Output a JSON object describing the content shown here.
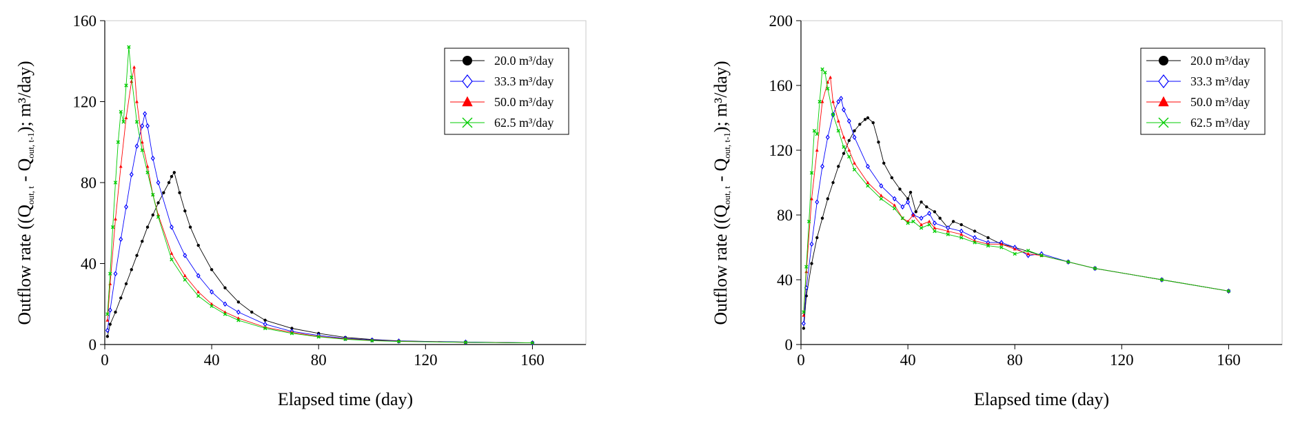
{
  "chart_data": [
    {
      "type": "line",
      "xlabel": "Elapsed time (day)",
      "ylabel": "Outflow rate ((Q",
      "ylabel_sub1": "out, t",
      "ylabel_mid": " - Q",
      "ylabel_sub2": "out, t-1",
      "ylabel_end": "); m³/day)",
      "xlim": [
        0,
        180
      ],
      "ylim": [
        0,
        160
      ],
      "xticks": [
        0,
        40,
        80,
        120,
        160
      ],
      "yticks": [
        0,
        40,
        80,
        120,
        160
      ],
      "grid": false,
      "legend_position": "top-right",
      "series": [
        {
          "name": "20.0 m³/day",
          "color": "#000000",
          "marker": "circle",
          "x": [
            1,
            2,
            4,
            6,
            8,
            10,
            12,
            14,
            16,
            18,
            20,
            22,
            24,
            25,
            26,
            28,
            30,
            32,
            35,
            40,
            45,
            50,
            55,
            60,
            70,
            80,
            90,
            100,
            110,
            135,
            160
          ],
          "y": [
            4,
            10,
            16,
            23,
            30,
            37,
            44,
            51,
            58,
            64,
            70,
            75,
            80,
            83,
            85,
            75,
            66,
            58,
            49,
            37,
            28,
            21,
            16,
            12,
            8,
            5.5,
            3.5,
            2.5,
            1.8,
            1.2,
            0.8
          ]
        },
        {
          "name": "33.3 m³/day",
          "color": "#0000ff",
          "marker": "diamond",
          "x": [
            1,
            2,
            4,
            6,
            8,
            10,
            12,
            14,
            15,
            16,
            18,
            20,
            25,
            30,
            35,
            40,
            45,
            50,
            60,
            70,
            80,
            90,
            100,
            110,
            135,
            160
          ],
          "y": [
            7,
            17,
            35,
            52,
            68,
            84,
            98,
            108,
            114,
            108,
            92,
            80,
            58,
            44,
            34,
            26,
            20,
            16,
            10,
            6.5,
            4.5,
            3,
            2.2,
            1.7,
            1.2,
            0.8
          ]
        },
        {
          "name": "50.0 m³/day",
          "color": "#ff0000",
          "marker": "triangle",
          "x": [
            1,
            2,
            4,
            6,
            8,
            10,
            11,
            12,
            14,
            16,
            18,
            20,
            25,
            30,
            35,
            40,
            45,
            50,
            60,
            70,
            80,
            90,
            100,
            110,
            135,
            160
          ],
          "y": [
            12,
            30,
            62,
            88,
            112,
            130,
            137,
            120,
            100,
            88,
            74,
            64,
            45,
            34,
            26,
            20,
            16,
            13,
            8.5,
            6,
            4,
            2.8,
            2,
            1.6,
            1.1,
            0.8
          ]
        },
        {
          "name": "62.5 m³/day",
          "color": "#00cc00",
          "marker": "cross",
          "x": [
            1,
            2,
            3,
            4,
            5,
            6,
            7,
            8,
            9,
            10,
            12,
            14,
            16,
            18,
            20,
            25,
            30,
            35,
            40,
            45,
            50,
            60,
            70,
            80,
            90,
            100,
            110,
            135,
            160
          ],
          "y": [
            15,
            35,
            58,
            80,
            100,
            115,
            110,
            128,
            147,
            132,
            110,
            96,
            85,
            74,
            63,
            42,
            32,
            24,
            19,
            15,
            12,
            8,
            5.5,
            3.8,
            2.6,
            1.9,
            1.5,
            1.1,
            0.8
          ]
        }
      ]
    },
    {
      "type": "line",
      "xlabel": "Elapsed time (day)",
      "ylabel": "Outflow rate ((Q",
      "ylabel_sub1": "out, t",
      "ylabel_mid": " - Q",
      "ylabel_sub2": "out, t-1",
      "ylabel_end": "); m³/day)",
      "xlim": [
        0,
        180
      ],
      "ylim": [
        0,
        200
      ],
      "xticks": [
        0,
        40,
        80,
        120,
        160
      ],
      "yticks": [
        0,
        40,
        80,
        120,
        160,
        200
      ],
      "grid": false,
      "legend_position": "top-right",
      "series": [
        {
          "name": "20.0 m³/day",
          "color": "#000000",
          "marker": "circle",
          "x": [
            1,
            2,
            4,
            6,
            8,
            10,
            12,
            14,
            16,
            18,
            20,
            22,
            24,
            25,
            27,
            29,
            31,
            34,
            37,
            40,
            41,
            43,
            45,
            47,
            50,
            52,
            55,
            57,
            60,
            65,
            70,
            75,
            80,
            90,
            100,
            110,
            135,
            160
          ],
          "y": [
            10,
            30,
            50,
            66,
            78,
            90,
            100,
            110,
            118,
            126,
            132,
            136,
            139,
            140,
            137,
            125,
            112,
            103,
            96,
            90,
            94,
            82,
            88,
            85,
            82,
            78,
            72,
            76,
            74,
            70,
            66,
            62,
            60,
            55,
            51,
            47,
            40,
            33
          ]
        },
        {
          "name": "33.3 m³/day",
          "color": "#0000ff",
          "marker": "diamond",
          "x": [
            1,
            2,
            4,
            6,
            8,
            10,
            12,
            14,
            15,
            16,
            18,
            20,
            25,
            30,
            35,
            38,
            40,
            42,
            45,
            48,
            50,
            55,
            60,
            65,
            70,
            75,
            80,
            85,
            90,
            100,
            110,
            135,
            160
          ],
          "y": [
            13,
            35,
            62,
            88,
            110,
            128,
            142,
            150,
            152,
            145,
            138,
            128,
            110,
            98,
            90,
            85,
            88,
            80,
            78,
            81,
            75,
            72,
            70,
            66,
            63,
            63,
            60,
            55,
            56,
            51,
            47,
            40,
            33
          ]
        },
        {
          "name": "50.0 m³/day",
          "color": "#ff0000",
          "marker": "triangle",
          "x": [
            1,
            2,
            4,
            6,
            8,
            10,
            11,
            12,
            14,
            16,
            18,
            20,
            25,
            30,
            35,
            38,
            40,
            42,
            45,
            48,
            50,
            55,
            60,
            65,
            70,
            75,
            80,
            85,
            90,
            100,
            110,
            135,
            160
          ],
          "y": [
            18,
            45,
            90,
            120,
            150,
            162,
            165,
            150,
            138,
            128,
            120,
            112,
            100,
            92,
            86,
            78,
            76,
            80,
            74,
            76,
            72,
            70,
            68,
            64,
            62,
            62,
            59,
            56,
            55,
            51,
            47,
            40,
            33
          ]
        },
        {
          "name": "62.5 m³/day",
          "color": "#00cc00",
          "marker": "cross",
          "x": [
            1,
            2,
            3,
            4,
            5,
            6,
            7,
            8,
            9,
            10,
            12,
            14,
            16,
            18,
            20,
            25,
            30,
            35,
            38,
            40,
            42,
            45,
            48,
            50,
            55,
            60,
            65,
            70,
            75,
            80,
            85,
            90,
            100,
            110,
            135,
            160
          ],
          "y": [
            20,
            48,
            76,
            106,
            132,
            130,
            150,
            170,
            168,
            158,
            142,
            132,
            122,
            116,
            108,
            98,
            90,
            84,
            78,
            75,
            76,
            72,
            74,
            70,
            68,
            66,
            63,
            61,
            60,
            56,
            58,
            55,
            51,
            47,
            40,
            33
          ]
        }
      ]
    }
  ]
}
